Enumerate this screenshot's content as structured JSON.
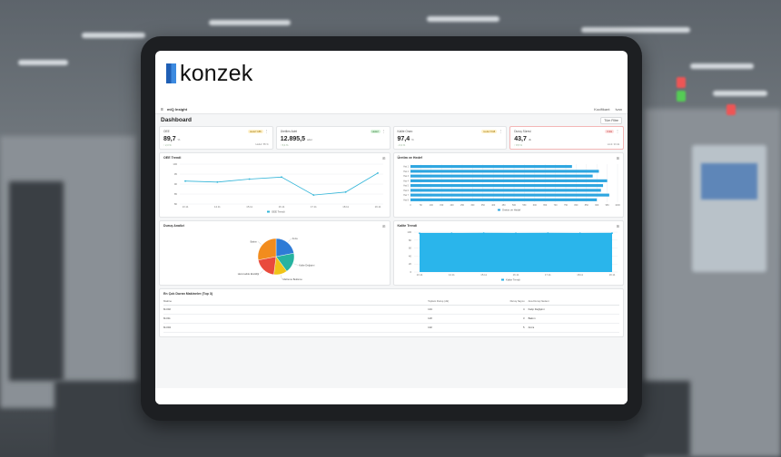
{
  "brand": {
    "name": "konzek",
    "accent": "#2a74d0"
  },
  "app": {
    "title": "miQ Insight",
    "menu_icon": "hamburger-icon",
    "top_right": [
      "Kocifikant",
      "Ivan"
    ],
    "page_title": "Dashboard",
    "filter_button": "Tüm Filtre"
  },
  "kpis": [
    {
      "label": "OEE",
      "value": "89,7",
      "unit": "%",
      "badge": "Hedef %85",
      "badge_color": "yellow",
      "sub": "↑ 2,3 %",
      "sub2": "Hedef: 85 %"
    },
    {
      "label": "Üretilen Adet",
      "value": "12.895,5",
      "unit": "adet",
      "badge": "Hedef",
      "badge_color": "green",
      "sub": "↑ 5,4 %",
      "sub2": ""
    },
    {
      "label": "Kalite Oranı",
      "value": "97,4",
      "unit": "%",
      "badge": "Hedef %98",
      "badge_color": "yellow",
      "sub": "↓ 0,3 %",
      "sub2": ""
    },
    {
      "label": "Duruş Süresi",
      "value": "43,7",
      "unit": "dk",
      "badge": "Kritik",
      "badge_color": "red",
      "sub": "↑ 8,5 %",
      "sub2": "Limit: 30 dk"
    }
  ],
  "charts": {
    "oee": {
      "title": "OEE Trendi",
      "legend": "OEE Trendi"
    },
    "hat": {
      "title": "Üretim ve Hedef",
      "legend": "Üretim ve Hedef"
    },
    "durus": {
      "title": "Duruş Analizi"
    },
    "kalite": {
      "title": "Kalite Trendi",
      "legend": "Kalite Trendi"
    }
  },
  "chart_data": [
    {
      "type": "line",
      "title": "OEE Trendi",
      "categories": [
        "13.11",
        "14.11",
        "15.11",
        "16.11",
        "17.11",
        "18.11",
        "19.11"
      ],
      "y_ticks": [
        "80",
        "85",
        "90",
        "95",
        "100"
      ],
      "ylim": [
        80,
        100
      ],
      "series": [
        {
          "name": "OEE Trendi",
          "values": [
            91.5,
            91.0,
            92.5,
            93.5,
            84.5,
            86.0,
            95.5
          ]
        }
      ],
      "color": "#33b5d8",
      "legend": "bottom"
    },
    {
      "type": "bar",
      "orientation": "horizontal",
      "title": "Üretim ve Hedef",
      "categories": [
        "Hat 1",
        "Hat 2",
        "Hat 3",
        "Hat 4",
        "Hat 5",
        "Hat 6",
        "Hat 7",
        "Hat 8"
      ],
      "x_ticks": [
        "0",
        "50",
        "100",
        "150",
        "200",
        "250",
        "300",
        "350",
        "400",
        "450",
        "500",
        "550",
        "600",
        "650",
        "700",
        "750",
        "800",
        "850",
        "900",
        "950",
        "1000"
      ],
      "xlim": [
        0,
        1000
      ],
      "series": [
        {
          "name": "Üretim ve Hedef",
          "values": [
            780,
            910,
            880,
            950,
            930,
            920,
            960,
            900
          ]
        }
      ],
      "color": "#2ea6e0",
      "legend": "bottom"
    },
    {
      "type": "pie",
      "title": "Duruş Analizi",
      "slices": [
        {
          "label": "Arıza",
          "value": 22,
          "color": "#2e7bd6"
        },
        {
          "label": "Kalite Değişimi",
          "value": 18,
          "color": "#27b3a0"
        },
        {
          "label": "Malzeme Bekleme",
          "value": 12,
          "color": "#f0c419"
        },
        {
          "label": "Hammadde Eksikliği",
          "value": 20,
          "color": "#e94b3c"
        },
        {
          "label": "Bakım",
          "value": 28,
          "color": "#f28c1e"
        }
      ]
    },
    {
      "type": "area",
      "title": "Kalite Trendi",
      "categories": [
        "13.11",
        "14.11",
        "15.11",
        "16.11",
        "17.11",
        "18.11",
        "19.11"
      ],
      "y_ticks": [
        "0",
        "20",
        "40",
        "60",
        "80",
        "100"
      ],
      "ylim": [
        0,
        100
      ],
      "series": [
        {
          "name": "Kalite Trendi",
          "values": [
            97,
            97,
            97.5,
            97,
            97.5,
            97,
            97.5
          ]
        }
      ],
      "color": "#1fb1ea",
      "legend": "bottom"
    }
  ],
  "table": {
    "title": "En Çok Duran Makineler (Top 3)",
    "headers": [
      "Makine",
      "Toplam Duruş (dk)",
      "Duruş Sayısı",
      "Ana Duruş Nedeni"
    ],
    "rows": [
      [
        "M-002",
        "134",
        "4",
        "Kalıp Değişimi"
      ],
      [
        "M-011",
        "118",
        "3",
        "Bakım"
      ],
      [
        "M-004",
        "102",
        "5",
        "Arıza"
      ]
    ]
  }
}
